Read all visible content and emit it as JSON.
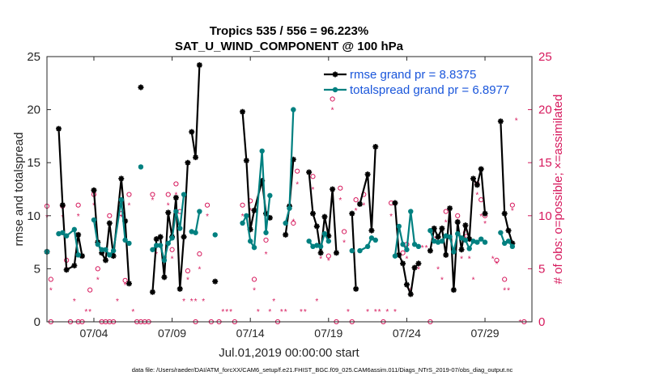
{
  "chart_data": {
    "type": "line",
    "title": "Tropics 535 / 556 = 96.223%",
    "subtitle": "SAT_U_WIND_COMPONENT @ 100 hPa",
    "xlabel": "Jul.01,2019 00:00:00 start",
    "ylabel_left": "rmse and totalspread",
    "ylabel_right": "# of obs: o=possible; ×=assimilated",
    "footnote": "data file: /Users/raeder/DAI/ATM_forcXX/CAM6_setup/f.e21.FHIST_BGC.f09_025.CAM6assim.011/Diags_NTrS_2019-07/obs_diag_output.nc",
    "xlim": [
      1,
      32
    ],
    "ylim_left": [
      0,
      25
    ],
    "ylim_right": [
      0,
      25
    ],
    "x_ticks": [
      4,
      9,
      14,
      19,
      24,
      29
    ],
    "x_tick_labels": [
      "07/04",
      "07/09",
      "07/14",
      "07/19",
      "07/24",
      "07/29"
    ],
    "y_ticks": [
      0,
      5,
      10,
      15,
      20,
      25
    ],
    "colors": {
      "rmse": "#000000",
      "spread": "#008080",
      "obs": "#d6185c",
      "axis": "#262626",
      "legend_text": "#1a56db"
    },
    "legend": [
      {
        "label": "rmse grand pr = 8.8375",
        "color": "#000000"
      },
      {
        "label": "totalspread grand pr = 6.8977",
        "color": "#008080"
      }
    ],
    "series": [
      {
        "name": "rmse",
        "segments": [
          [
            [
              1.0,
              6.6
            ]
          ],
          [
            [
              1.75,
              18.2
            ],
            [
              2.0,
              11.0
            ],
            [
              2.25,
              4.9
            ],
            [
              2.75,
              5.3
            ],
            [
              3.0,
              8.2
            ],
            [
              3.25,
              6.2
            ]
          ],
          [
            [
              4.0,
              12.4
            ],
            [
              4.25,
              7.5
            ],
            [
              4.5,
              6.5
            ],
            [
              4.75,
              5.8
            ],
            [
              5.0,
              9.3
            ],
            [
              5.25,
              6.2
            ],
            [
              5.75,
              13.5
            ],
            [
              6.0,
              9.5
            ],
            [
              6.25,
              3.6
            ]
          ],
          [
            [
              7.0,
              22.1
            ]
          ],
          [
            [
              7.75,
              2.8
            ],
            [
              8.0,
              7.8
            ],
            [
              8.25,
              8.0
            ],
            [
              8.5,
              4.2
            ],
            [
              8.75,
              10.3
            ],
            [
              9.0,
              8.0
            ],
            [
              9.25,
              11.7
            ],
            [
              9.5,
              3.1
            ],
            [
              9.75,
              8.0
            ],
            [
              10.0,
              15.0
            ]
          ],
          [
            [
              10.25,
              17.9
            ],
            [
              10.5,
              15.5
            ],
            [
              10.75,
              24.2
            ]
          ],
          [
            [
              11.75,
              3.8
            ]
          ],
          [
            [
              13.5,
              19.8
            ],
            [
              13.75,
              15.2
            ],
            [
              14.0,
              8.7
            ],
            [
              14.25,
              10.5
            ],
            [
              14.75,
              13.3
            ],
            [
              15.0,
              10.2
            ],
            [
              15.25,
              9.8
            ]
          ],
          [
            [
              16.25,
              8.2
            ],
            [
              16.5,
              10.9
            ],
            [
              16.75,
              15.3
            ]
          ],
          [
            [
              17.75,
              14.1
            ],
            [
              18.0,
              10.2
            ],
            [
              18.25,
              9.0
            ],
            [
              18.5,
              6.5
            ],
            [
              18.75,
              9.9
            ],
            [
              19.0,
              8.1
            ],
            [
              19.25,
              12.5
            ],
            [
              19.5,
              6.5
            ]
          ],
          [
            [
              20.5,
              10.2
            ],
            [
              20.75,
              3.1
            ]
          ],
          [
            [
              21.0,
              11.1
            ],
            [
              21.5,
              13.9
            ],
            [
              21.75,
              8.6
            ],
            [
              22.0,
              16.5
            ]
          ],
          [
            [
              23.25,
              11.2
            ],
            [
              23.5,
              6.3
            ],
            [
              23.75,
              5.5
            ],
            [
              24.0,
              3.5
            ],
            [
              24.25,
              2.6
            ],
            [
              24.5,
              5.1
            ],
            [
              24.75,
              5.5
            ]
          ],
          [
            [
              25.5,
              6.7
            ],
            [
              25.75,
              8.8
            ],
            [
              26.0,
              8.0
            ],
            [
              26.25,
              8.8
            ],
            [
              26.5,
              6.3
            ],
            [
              26.75,
              10.7
            ],
            [
              27.0,
              3.0
            ],
            [
              27.25,
              9.4
            ],
            [
              27.5,
              6.8
            ],
            [
              27.75,
              9.1
            ],
            [
              28.0,
              7.8
            ],
            [
              28.25,
              13.5
            ],
            [
              28.5,
              12.9
            ],
            [
              28.75,
              14.4
            ],
            [
              29.0,
              10.2
            ]
          ],
          [
            [
              30.0,
              18.9
            ],
            [
              30.25,
              10.2
            ],
            [
              30.5,
              8.6
            ],
            [
              30.75,
              7.4
            ]
          ]
        ]
      },
      {
        "name": "totalspread",
        "segments": [
          [
            [
              1.0,
              6.6
            ]
          ],
          [
            [
              1.75,
              8.3
            ],
            [
              2.0,
              8.4
            ],
            [
              2.25,
              8.1
            ],
            [
              2.75,
              8.7
            ],
            [
              3.0,
              6.3
            ]
          ],
          [
            [
              4.0,
              9.6
            ],
            [
              4.25,
              7.3
            ],
            [
              4.5,
              6.8
            ],
            [
              4.75,
              6.8
            ],
            [
              5.0,
              6.3
            ],
            [
              5.25,
              6.7
            ],
            [
              5.75,
              11.5
            ],
            [
              6.0,
              7.7
            ],
            [
              6.25,
              7.4
            ]
          ],
          [
            [
              7.0,
              14.6
            ]
          ],
          [
            [
              7.75,
              6.8
            ],
            [
              8.0,
              7.2
            ],
            [
              8.25,
              7.2
            ],
            [
              8.5,
              5.8
            ],
            [
              8.75,
              7.4
            ],
            [
              9.0,
              7.9
            ],
            [
              9.25,
              10.4
            ],
            [
              9.5,
              8.8
            ],
            [
              9.75,
              12.0
            ]
          ],
          [
            [
              10.25,
              8.5
            ],
            [
              10.5,
              8.4
            ],
            [
              10.75,
              10.4
            ]
          ],
          [
            [
              11.75,
              8.2
            ]
          ],
          [
            [
              13.5,
              9.3
            ],
            [
              13.75,
              10.0
            ],
            [
              14.0,
              7.6
            ],
            [
              14.25,
              7.0
            ],
            [
              14.75,
              16.1
            ],
            [
              15.0,
              8.4
            ],
            [
              15.25,
              11.9
            ]
          ],
          [
            [
              16.25,
              9.3
            ],
            [
              16.5,
              10.7
            ],
            [
              16.75,
              20.0
            ]
          ],
          [
            [
              17.75,
              7.6
            ],
            [
              18.0,
              7.1
            ],
            [
              18.25,
              7.2
            ],
            [
              18.5,
              7.1
            ],
            [
              18.75,
              8.3
            ],
            [
              19.0,
              7.6
            ]
          ],
          [
            [
              20.5,
              6.7
            ]
          ],
          [
            [
              21.0,
              6.7
            ],
            [
              21.5,
              7.1
            ],
            [
              21.75,
              7.9
            ],
            [
              22.0,
              7.7
            ]
          ],
          [
            [
              23.25,
              6.2
            ],
            [
              23.5,
              9.0
            ],
            [
              23.75,
              7.3
            ],
            [
              24.0,
              6.8
            ],
            [
              24.25,
              10.4
            ],
            [
              24.5,
              7.3
            ],
            [
              24.75,
              7.1
            ]
          ],
          [
            [
              25.5,
              8.6
            ],
            [
              25.75,
              7.6
            ],
            [
              26.0,
              7.5
            ],
            [
              26.25,
              7.6
            ],
            [
              26.5,
              8.1
            ],
            [
              26.75,
              8.0
            ],
            [
              27.0,
              6.6
            ],
            [
              27.25,
              8.3
            ],
            [
              27.5,
              7.9
            ],
            [
              27.75,
              7.7
            ],
            [
              28.0,
              6.9
            ],
            [
              28.25,
              7.6
            ],
            [
              28.5,
              7.5
            ],
            [
              28.75,
              7.8
            ],
            [
              29.0,
              7.5
            ]
          ],
          [
            [
              30.0,
              8.4
            ],
            [
              30.25,
              7.4
            ],
            [
              30.5,
              7.6
            ],
            [
              30.75,
              7.1
            ]
          ]
        ]
      }
    ],
    "obs_possible": [
      [
        1.0,
        10.9
      ],
      [
        1.25,
        4.0
      ],
      [
        1.75,
        8.3
      ],
      [
        2.0,
        10.9
      ],
      [
        2.25,
        5.8
      ],
      [
        3.0,
        11.0
      ],
      [
        3.75,
        3.0
      ],
      [
        4.0,
        12.0
      ],
      [
        4.25,
        5.0
      ],
      [
        5.0,
        10.0
      ],
      [
        5.75,
        10.2
      ],
      [
        6.0,
        3.9
      ],
      [
        6.25,
        12.0
      ],
      [
        7.75,
        12.0
      ],
      [
        8.0,
        7.2
      ],
      [
        8.75,
        12.0
      ],
      [
        9.0,
        6.8
      ],
      [
        9.25,
        13.0
      ],
      [
        9.5,
        10.4
      ],
      [
        10.0,
        4.8
      ],
      [
        10.75,
        6.4
      ],
      [
        11.25,
        11.0
      ],
      [
        13.5,
        11.0
      ],
      [
        14.0,
        11.4
      ],
      [
        14.25,
        4.0
      ],
      [
        15.0,
        7.7
      ],
      [
        16.75,
        9.3
      ],
      [
        17.0,
        14.2
      ],
      [
        18.0,
        13.7
      ],
      [
        19.0,
        6.2
      ],
      [
        19.25,
        21.0
      ],
      [
        19.75,
        12.6
      ],
      [
        20.0,
        8.5
      ],
      [
        20.75,
        11.5
      ],
      [
        21.25,
        12.0
      ],
      [
        23.0,
        11.2
      ],
      [
        23.75,
        6.5
      ],
      [
        24.0,
        7.3
      ],
      [
        25.75,
        7.8
      ],
      [
        26.5,
        10.4
      ],
      [
        27.25,
        10.0
      ],
      [
        27.75,
        8.4
      ],
      [
        28.5,
        13.0
      ],
      [
        28.75,
        11.5
      ],
      [
        29.0,
        10.0
      ],
      [
        29.75,
        5.8
      ],
      [
        30.25,
        4.0
      ],
      [
        30.75,
        11.0
      ]
    ],
    "obs_assimilated": [
      [
        1.0,
        9.9
      ],
      [
        1.25,
        3.0
      ],
      [
        1.75,
        8.3
      ],
      [
        2.0,
        9.9
      ],
      [
        2.25,
        5.0
      ],
      [
        2.75,
        2.0
      ],
      [
        3.0,
        10.0
      ],
      [
        3.75,
        1.0
      ],
      [
        4.0,
        11.0
      ],
      [
        4.25,
        4.0
      ],
      [
        5.0,
        9.0
      ],
      [
        5.75,
        9.9
      ],
      [
        6.0,
        3.5
      ],
      [
        6.25,
        11.0
      ],
      [
        7.75,
        11.5
      ],
      [
        8.0,
        6.4
      ],
      [
        8.75,
        11.0
      ],
      [
        9.0,
        6.0
      ],
      [
        9.25,
        12.0
      ],
      [
        9.5,
        3.0
      ],
      [
        10.0,
        4.0
      ],
      [
        10.75,
        5.0
      ],
      [
        11.25,
        10.0
      ],
      [
        13.5,
        10.0
      ],
      [
        14.0,
        10.5
      ],
      [
        14.25,
        3.0
      ],
      [
        15.0,
        6.4
      ],
      [
        16.75,
        9.5
      ],
      [
        17.0,
        13.0
      ],
      [
        18.0,
        12.5
      ],
      [
        19.0,
        5.8
      ],
      [
        19.25,
        20.0
      ],
      [
        19.75,
        11.5
      ],
      [
        20.0,
        7.5
      ],
      [
        20.75,
        10.5
      ],
      [
        21.25,
        11.0
      ],
      [
        23.0,
        10.0
      ],
      [
        23.75,
        5.5
      ],
      [
        24.0,
        6.0
      ],
      [
        25.75,
        7.5
      ],
      [
        26.5,
        9.4
      ],
      [
        27.25,
        9.5
      ],
      [
        27.75,
        7.9
      ],
      [
        28.5,
        12.0
      ],
      [
        28.75,
        10.0
      ],
      [
        29.0,
        9.3
      ],
      [
        29.75,
        5.5
      ],
      [
        30.25,
        3.0
      ],
      [
        30.75,
        10.5
      ],
      [
        31.0,
        19.0
      ],
      [
        3.5,
        1.0
      ],
      [
        5.5,
        2.0
      ],
      [
        6.5,
        1.0
      ],
      [
        9.75,
        2.0
      ],
      [
        10.25,
        2.0
      ],
      [
        10.5,
        2.0
      ],
      [
        11.0,
        2.0
      ],
      [
        12.25,
        1.0
      ],
      [
        12.5,
        1.0
      ],
      [
        12.75,
        1.0
      ],
      [
        14.5,
        1.0
      ],
      [
        15.25,
        1.0
      ],
      [
        15.5,
        2.0
      ],
      [
        16.0,
        1.0
      ],
      [
        16.25,
        1.0
      ],
      [
        17.25,
        1.0
      ],
      [
        17.5,
        1.0
      ],
      [
        18.25,
        2.0
      ],
      [
        18.5,
        6.0
      ],
      [
        20.25,
        1.0
      ],
      [
        21.5,
        1.0
      ],
      [
        22.0,
        1.0
      ],
      [
        22.25,
        1.0
      ],
      [
        22.75,
        1.0
      ],
      [
        23.25,
        1.0
      ],
      [
        24.25,
        3.0
      ],
      [
        24.75,
        5.0
      ],
      [
        25.0,
        7.0
      ],
      [
        25.25,
        7.0
      ],
      [
        26.0,
        5.0
      ],
      [
        26.25,
        4.0
      ],
      [
        27.0,
        3.0
      ],
      [
        27.5,
        6.0
      ],
      [
        28.0,
        6.0
      ],
      [
        28.25,
        4.0
      ],
      [
        29.5,
        6.0
      ],
      [
        30.5,
        3.0
      ],
      [
        31.25,
        0.0
      ]
    ],
    "obs_zero": [
      [
        1.25,
        0
      ],
      [
        2.5,
        0
      ],
      [
        3.0,
        0
      ],
      [
        3.25,
        0
      ],
      [
        4.5,
        0
      ],
      [
        4.75,
        0
      ],
      [
        5.0,
        0
      ],
      [
        5.25,
        0
      ],
      [
        6.75,
        0
      ],
      [
        7.0,
        0
      ],
      [
        7.25,
        0
      ],
      [
        7.5,
        0
      ],
      [
        10.5,
        0
      ],
      [
        11.5,
        0
      ],
      [
        12.0,
        0
      ],
      [
        13.0,
        0
      ],
      [
        15.75,
        0
      ],
      [
        19.5,
        0
      ],
      [
        20.5,
        0
      ],
      [
        22.5,
        0
      ],
      [
        25.5,
        0
      ],
      [
        31.5,
        0
      ]
    ]
  }
}
